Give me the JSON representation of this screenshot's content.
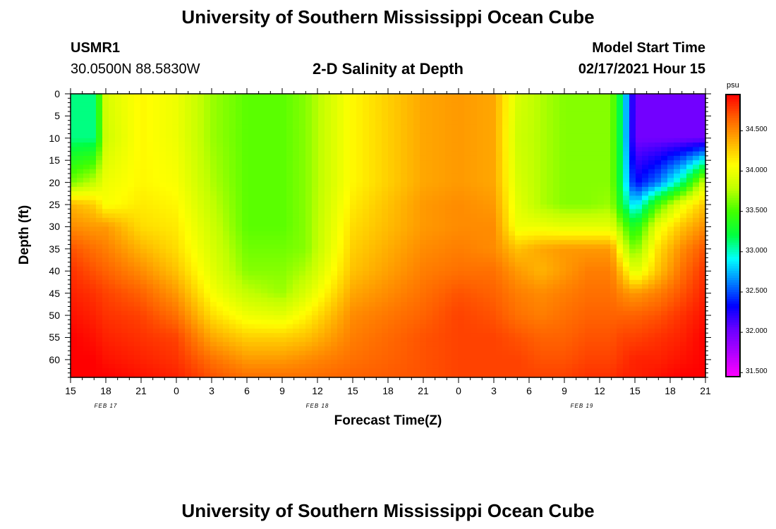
{
  "header": {
    "title_top": "University of Southern Mississippi Ocean Cube",
    "station_id": "USMR1",
    "station_coords": "30.0500N 88.5830W",
    "plot_title": "2-D Salinity at Depth",
    "model_start_label": "Model Start Time",
    "model_start_value": "02/17/2021 Hour 15",
    "title_bottom": "University of Southern Mississippi Ocean Cube"
  },
  "colorbar": {
    "unit": "psu",
    "ticks": [
      "34.500",
      "34.000",
      "33.500",
      "33.000",
      "32.500",
      "32.000",
      "31.500"
    ],
    "tick_values": [
      34.5,
      34.0,
      33.5,
      33.0,
      32.5,
      32.0,
      31.5
    ],
    "min": 31.45,
    "max": 34.95,
    "colors": [
      "#ff00ff",
      "#b000ff",
      "#6a00ff",
      "#0000ff",
      "#0080ff",
      "#00ffff",
      "#00ff40",
      "#40ff00",
      "#c0ff00",
      "#ffff00",
      "#ffb000",
      "#ff6000",
      "#ff0000"
    ]
  },
  "chart_data": {
    "type": "heatmap",
    "title": "2-D Salinity at Depth",
    "xlabel": "Forecast Time(Z)",
    "ylabel": "Depth (ft)",
    "x_tick_labels": [
      "15",
      "18",
      "21",
      "0",
      "3",
      "6",
      "9",
      "12",
      "15",
      "18",
      "21",
      "0",
      "3",
      "6",
      "9",
      "12",
      "15",
      "18",
      "21"
    ],
    "x_hours": [
      0,
      3,
      6,
      9,
      12,
      15,
      18,
      21,
      24,
      27,
      30,
      33,
      36,
      39,
      42,
      45,
      48,
      51,
      54
    ],
    "x_date_labels": [
      {
        "label": "FEB 17",
        "hour": 3
      },
      {
        "label": "FEB 18",
        "hour": 21
      },
      {
        "label": "FEB 19",
        "hour": 43.5
      }
    ],
    "y_tick_labels": [
      "0",
      "5",
      "10",
      "15",
      "20",
      "25",
      "30",
      "35",
      "40",
      "45",
      "50",
      "55",
      "60"
    ],
    "y_depths": [
      0,
      5,
      10,
      15,
      20,
      25,
      30,
      35,
      40,
      45,
      50,
      55,
      60
    ],
    "ylim": [
      0,
      64
    ],
    "xlim": [
      0,
      54
    ],
    "unit": "psu",
    "depths": [
      0,
      10,
      20,
      25,
      30,
      35,
      40,
      45,
      50,
      55,
      60,
      64
    ],
    "times": [
      0,
      2,
      3,
      6,
      9,
      12,
      15,
      18,
      20,
      24,
      30,
      33,
      36,
      38,
      40,
      42,
      44,
      46,
      47,
      48,
      50,
      52,
      54
    ],
    "salinity": [
      [
        33.1,
        33.1,
        33.9,
        34.1,
        34.0,
        33.7,
        33.55,
        33.55,
        33.65,
        34.1,
        34.4,
        34.45,
        34.4,
        33.9,
        33.75,
        33.65,
        33.65,
        33.65,
        33.0,
        32.0,
        32.0,
        32.0,
        32.0
      ],
      [
        33.1,
        33.1,
        33.85,
        34.1,
        34.0,
        33.7,
        33.55,
        33.55,
        33.65,
        34.1,
        34.4,
        34.45,
        34.4,
        33.85,
        33.75,
        33.65,
        33.65,
        33.65,
        33.0,
        32.0,
        32.0,
        32.0,
        32.0
      ],
      [
        33.6,
        33.8,
        34.0,
        34.1,
        34.05,
        33.75,
        33.55,
        33.55,
        33.65,
        34.1,
        34.4,
        34.45,
        34.4,
        33.9,
        33.75,
        33.65,
        33.65,
        33.65,
        33.05,
        32.3,
        32.6,
        33.1,
        33.9
      ],
      [
        34.35,
        34.25,
        34.05,
        34.15,
        34.1,
        33.8,
        33.55,
        33.55,
        33.65,
        34.15,
        34.45,
        34.5,
        34.45,
        33.95,
        33.75,
        33.65,
        33.65,
        33.7,
        33.2,
        32.8,
        33.5,
        34.0,
        34.3
      ],
      [
        34.5,
        34.45,
        34.45,
        34.2,
        34.15,
        33.85,
        33.55,
        33.55,
        33.65,
        34.2,
        34.45,
        34.5,
        34.5,
        34.0,
        34.0,
        33.95,
        33.95,
        33.95,
        33.6,
        33.3,
        34.0,
        34.3,
        34.5
      ],
      [
        34.7,
        34.6,
        34.55,
        34.35,
        34.2,
        33.9,
        33.6,
        33.6,
        33.65,
        34.25,
        34.5,
        34.55,
        34.5,
        34.3,
        34.4,
        34.45,
        34.45,
        34.45,
        33.9,
        33.6,
        34.2,
        34.5,
        34.7
      ],
      [
        34.8,
        34.7,
        34.65,
        34.5,
        34.3,
        33.95,
        33.65,
        33.65,
        33.75,
        34.3,
        34.55,
        34.6,
        34.6,
        34.45,
        34.35,
        34.45,
        34.55,
        34.55,
        34.25,
        33.9,
        34.3,
        34.6,
        34.8
      ],
      [
        34.85,
        34.8,
        34.75,
        34.65,
        34.45,
        34.05,
        33.8,
        33.7,
        33.9,
        34.4,
        34.6,
        34.7,
        34.65,
        34.55,
        34.5,
        34.55,
        34.6,
        34.6,
        34.5,
        34.45,
        34.55,
        34.7,
        34.85
      ],
      [
        34.9,
        34.85,
        34.8,
        34.75,
        34.6,
        34.2,
        34.0,
        33.95,
        34.1,
        34.5,
        34.65,
        34.75,
        34.7,
        34.6,
        34.55,
        34.6,
        34.65,
        34.65,
        34.65,
        34.65,
        34.7,
        34.8,
        34.9
      ],
      [
        34.95,
        34.9,
        34.85,
        34.8,
        34.75,
        34.4,
        34.25,
        34.25,
        34.3,
        34.55,
        34.7,
        34.75,
        34.75,
        34.7,
        34.65,
        34.65,
        34.7,
        34.7,
        34.75,
        34.75,
        34.8,
        34.85,
        34.95
      ],
      [
        34.95,
        34.95,
        34.9,
        34.85,
        34.8,
        34.6,
        34.45,
        34.45,
        34.5,
        34.6,
        34.7,
        34.75,
        34.75,
        34.75,
        34.7,
        34.7,
        34.75,
        34.75,
        34.8,
        34.85,
        34.85,
        34.9,
        34.95
      ],
      [
        34.95,
        34.95,
        34.95,
        34.9,
        34.85,
        34.7,
        34.6,
        34.6,
        34.6,
        34.65,
        34.7,
        34.75,
        34.75,
        34.75,
        34.75,
        34.75,
        34.8,
        34.8,
        34.85,
        34.85,
        34.9,
        34.95,
        34.95
      ]
    ]
  }
}
